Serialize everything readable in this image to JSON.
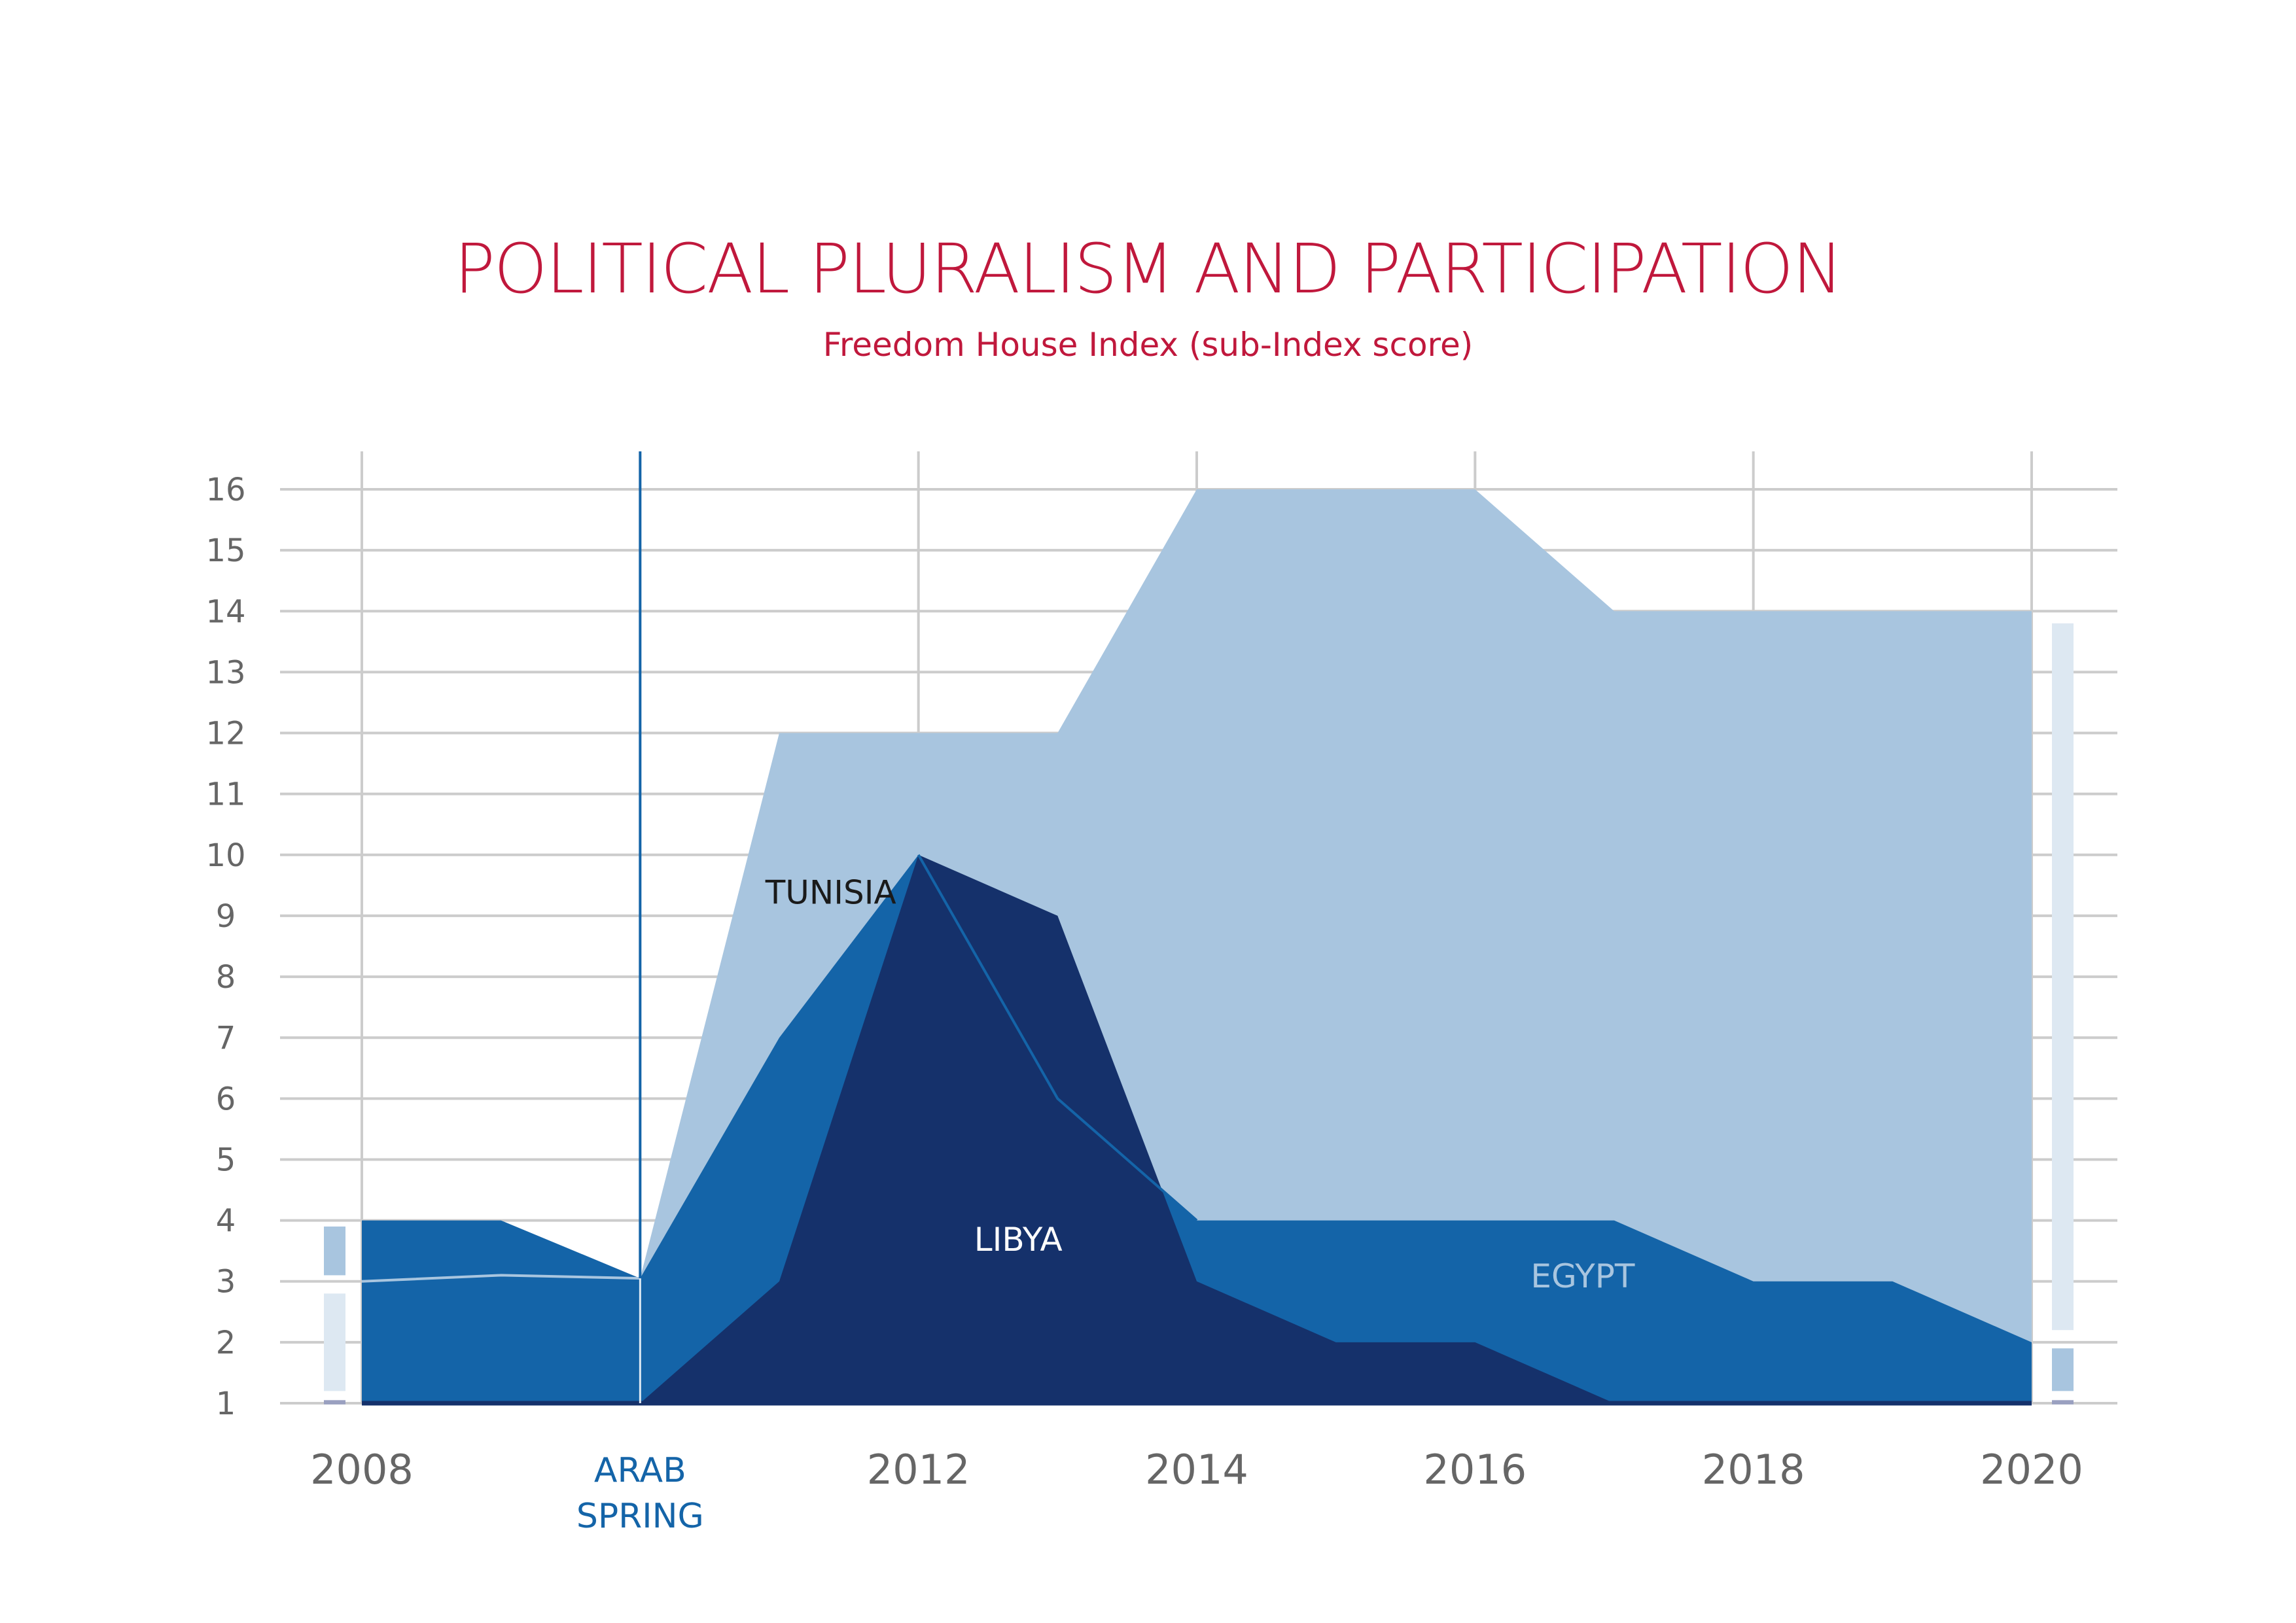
{
  "chart_data": {
    "type": "area",
    "title": "POLITICAL PLURALISM AND PARTICIPATION",
    "subtitle": "Freedom House Index (sub-Index score)",
    "xlabel": "",
    "ylabel": "",
    "x": [
      2008,
      2009,
      2010,
      2011,
      2012,
      2013,
      2014,
      2015,
      2016,
      2017,
      2018,
      2019,
      2020
    ],
    "xticks": [
      "2008",
      "2012",
      "2014",
      "2016",
      "2018",
      "2020"
    ],
    "yticks": [
      "1",
      "2",
      "3",
      "4",
      "5",
      "6",
      "7",
      "8",
      "9",
      "10",
      "11",
      "12",
      "13",
      "14",
      "15",
      "16"
    ],
    "ylim": [
      1,
      16
    ],
    "xlim": [
      2008,
      2020
    ],
    "grid": true,
    "series": [
      {
        "name": "TUNISIA",
        "color": "#a8c5df",
        "label_color": "#1a1a1a",
        "label_at": [
          2010.9,
          9.2
        ],
        "values": [
          3,
          3.1,
          3.05,
          12,
          12,
          12,
          16,
          16,
          16,
          14,
          14,
          14,
          14
        ]
      },
      {
        "name": "EGYPT",
        "color": "#1464a8",
        "label_color": "#a8c5df",
        "label_at": [
          2016.4,
          2.9
        ],
        "values": [
          4,
          4,
          3.05,
          7,
          10,
          6,
          4,
          4,
          4,
          4,
          3,
          3,
          2
        ]
      },
      {
        "name": "LIBYA",
        "color": "#15316b",
        "label_color": "#ffffff",
        "label_at": [
          2012.4,
          3.5
        ],
        "values": [
          1,
          1,
          1,
          3,
          10,
          9,
          3,
          2,
          2,
          1,
          1,
          1,
          1
        ]
      }
    ],
    "annotations": [
      {
        "type": "vline",
        "x": 2010,
        "color": "#1464a8",
        "label": [
          "ARAB",
          "SPRING"
        ]
      }
    ],
    "legend_swatches": {
      "left": [
        {
          "color": "#a8c5df",
          "range": [
            3.1,
            3.9
          ]
        },
        {
          "color": "#dde8f2",
          "range": [
            1.2,
            2.8
          ]
        },
        {
          "color": "#9aa0c0",
          "range": [
            0.98,
            1.05
          ]
        }
      ],
      "right": [
        {
          "color": "#dde8f2",
          "range": [
            2.2,
            13.8
          ]
        },
        {
          "color": "#a8c5df",
          "range": [
            1.2,
            1.9
          ]
        },
        {
          "color": "#9aa0c0",
          "range": [
            0.98,
            1.05
          ]
        }
      ]
    }
  }
}
